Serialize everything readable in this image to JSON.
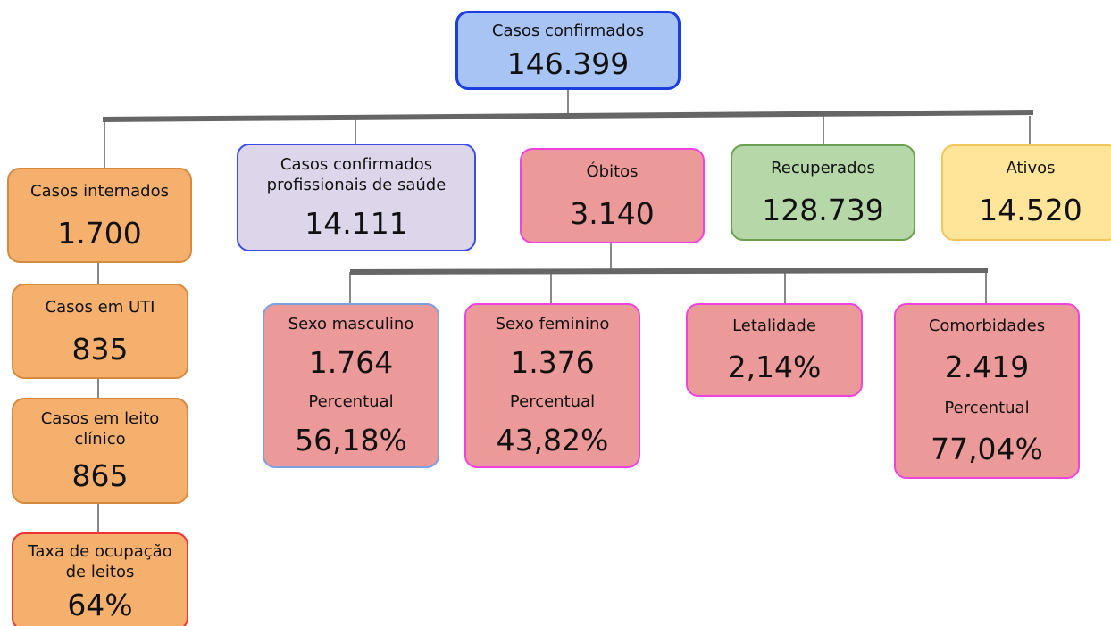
{
  "root": {
    "label": "Casos confirmados",
    "value": "146.399"
  },
  "nodes": [
    {
      "label": "Casos internados",
      "value": "1.700"
    },
    {
      "label": "Casos em UTI",
      "value": "835"
    },
    {
      "label": "Casos em leito clínico",
      "value": "865"
    },
    {
      "label": "Taxa de ocupação de leitos",
      "value": "64%"
    },
    {
      "label": "Casos confirmados profissionais de saúde",
      "value": "14.111"
    },
    {
      "label": "Óbitos",
      "value": "3.140"
    },
    {
      "label": "Recuperados",
      "value": "128.739"
    },
    {
      "label": "Ativos",
      "value": "14.520"
    },
    {
      "label": "Sexo masculino",
      "value": "1.764",
      "sub_label": "Percentual",
      "sub_value": "56,18%"
    },
    {
      "label": "Sexo feminino",
      "value": "1.376",
      "sub_label": "Percentual",
      "sub_value": "43,82%"
    },
    {
      "label": "Letalidade",
      "value": "2,14%"
    },
    {
      "label": "Comorbidades",
      "value": "2.419",
      "sub_label": "Percentual",
      "sub_value": "77,04%"
    }
  ]
}
